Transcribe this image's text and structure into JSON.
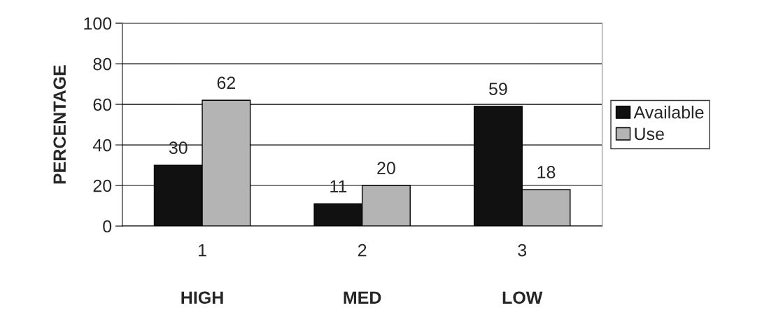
{
  "chart_data": {
    "type": "bar",
    "ylabel": "PERCENTAGE",
    "categories": [
      "1",
      "2",
      "3"
    ],
    "series": [
      {
        "name": "Available",
        "color": "#111111",
        "values": [
          30,
          11,
          59
        ]
      },
      {
        "name": "Use",
        "color": "#b4b4b4",
        "values": [
          62,
          20,
          18
        ]
      }
    ],
    "ylim": [
      0,
      100
    ],
    "yticks": [
      0,
      20,
      40,
      60,
      80,
      100
    ],
    "grid": "y",
    "legend": "right",
    "data_labels": true,
    "annotations": [
      "HIGH",
      "MED",
      "LOW"
    ]
  }
}
